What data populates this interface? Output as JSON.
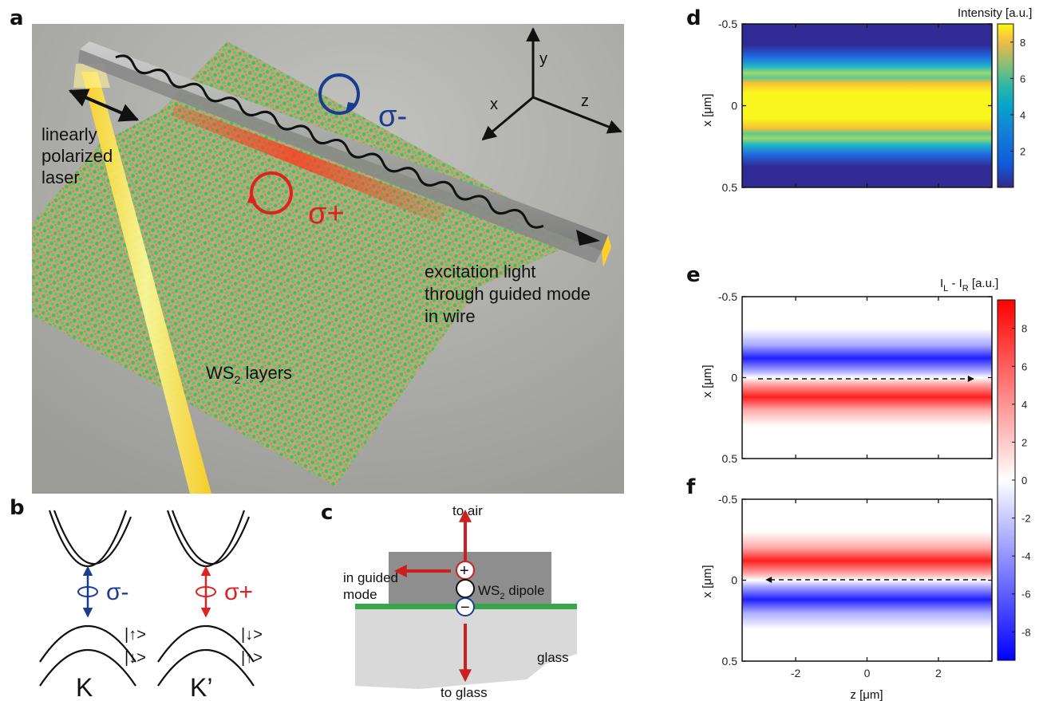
{
  "panels": {
    "a": {
      "label": "a",
      "texts": {
        "laser": [
          "linearly",
          "polarized",
          "laser"
        ],
        "sigma_minus": "σ-",
        "sigma_plus": "σ+",
        "excitation": [
          "excitation light",
          "through guided mode",
          "in wire"
        ],
        "ws2": "WS",
        "ws2_sub": "2",
        "ws2_rest": " layers",
        "axis_x": "x",
        "axis_y": "y",
        "axis_z": "z"
      },
      "colors": {
        "background": "#a9a9a6",
        "lattice": "#37c25a",
        "laser": "#ffec3a",
        "sigma_minus": "#1c3c90",
        "sigma_plus": "#dd2222"
      }
    },
    "b": {
      "label": "b",
      "valley_k": "K",
      "valley_kp": "K’",
      "sigma_minus": "σ-",
      "sigma_plus": "σ+",
      "spin_k": [
        "|↑>",
        "|↓>"
      ],
      "spin_kp": [
        "|↓>",
        "|↑>"
      ]
    },
    "c": {
      "label": "c",
      "to_air": "to air",
      "to_glass": "to glass",
      "guided": [
        "in guided",
        "mode"
      ],
      "dipole_ws": "WS",
      "dipole_sub": "2",
      "dipole_rest": " dipole",
      "glass": "glass",
      "plus": "+",
      "minus": "−"
    },
    "d": {
      "label": "d",
      "colorbar_title": "Intensity [a.u.]",
      "xlabel": "",
      "ylabel": "x [μm]"
    },
    "e": {
      "label": "e",
      "colorbar_title_I": "I",
      "colorbar_sub_L": "L",
      "colorbar_mid": " - I",
      "colorbar_sub_R": "R",
      "colorbar_tail": " [a.u.]",
      "ylabel": "x [μm]"
    },
    "f": {
      "label": "f",
      "xlabel": "z [μm]",
      "ylabel": "x [μm]"
    }
  },
  "chart_data": [
    {
      "type": "heatmap",
      "panel": "d",
      "xlim": [
        -3.5,
        3.5
      ],
      "ylim": [
        -0.5,
        0.5
      ],
      "y_ticks": [
        "-0.5",
        "0",
        "0.5"
      ],
      "x_ticks": [
        -2,
        0,
        2
      ],
      "colorbar": {
        "ticks": [
          "2",
          "4",
          "6",
          "8"
        ],
        "range": [
          0,
          9
        ],
        "colormap": "parula"
      },
      "profile": "intensity peak (~9) centred at x = 0, falling to ~0 by |x| = 0.35 μm, uniform along z"
    },
    {
      "type": "heatmap",
      "panel": "e",
      "xlim": [
        -3.5,
        3.5
      ],
      "ylim": [
        -0.5,
        0.5
      ],
      "y_ticks": [
        "-0.5",
        "0",
        "0.5"
      ],
      "x_ticks": [
        -2,
        0,
        2
      ],
      "colorbar": {
        "ticks": [
          "8",
          "6",
          "4",
          "2",
          "0",
          "-2",
          "-4",
          "-6",
          "-8"
        ],
        "range": [
          -9.5,
          9.5
        ],
        "colormap": "blue-white-red"
      },
      "profile": "negative (blue) band centred at x = -0.1 μm, positive (red) band centred at x = +0.1 μm",
      "arrow": "dashed arrow along x = 0 pointing to +z"
    },
    {
      "type": "heatmap",
      "panel": "f",
      "xlim": [
        -3.5,
        3.5
      ],
      "ylim": [
        -0.5,
        0.5
      ],
      "y_ticks": [
        "-0.5",
        "0",
        "0.5"
      ],
      "x_ticks": [
        "-2",
        "0",
        "2"
      ],
      "profile": "positive (red) band centred at x = -0.1 μm, negative (blue) band centred at x = +0.1 μm",
      "arrow": "dashed arrow along x = 0 pointing to -z"
    }
  ]
}
